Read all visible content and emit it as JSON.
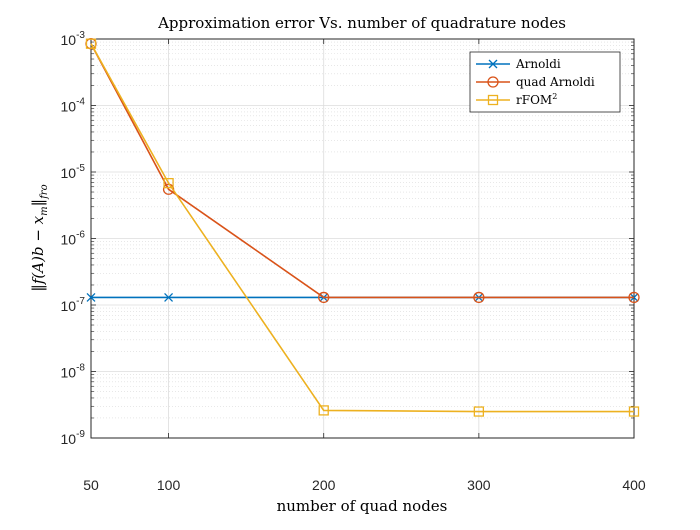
{
  "chart_data": {
    "type": "line",
    "title": "Approximation error Vs. number of quadrature nodes",
    "xlabel": "number of quad nodes",
    "ylabel": "‖f(A)b − x_m‖_fro",
    "ylabel_parts": {
      "lhs": "‖f(A)b − x",
      "sub_m": "m",
      "bar": "‖",
      "sub_fro": "fro"
    },
    "xlim": [
      50,
      400
    ],
    "ylim": [
      1e-09,
      0.001
    ],
    "yscale": "log",
    "grid": true,
    "legend_position": "top-right",
    "x": [
      50,
      100,
      200,
      300,
      400
    ],
    "x_tick_labels": [
      "50",
      "100",
      "200",
      "300",
      "400"
    ],
    "y_tick_labels": [
      {
        "value": 1e-09,
        "base": "10",
        "exp": "-9"
      },
      {
        "value": 1e-08,
        "base": "10",
        "exp": "-8"
      },
      {
        "value": 1e-07,
        "base": "10",
        "exp": "-7"
      },
      {
        "value": 1e-06,
        "base": "10",
        "exp": "-6"
      },
      {
        "value": 1e-05,
        "base": "10",
        "exp": "-5"
      },
      {
        "value": 0.0001,
        "base": "10",
        "exp": "-4"
      },
      {
        "value": 0.001,
        "base": "10",
        "exp": "-3"
      }
    ],
    "series": [
      {
        "name": "Arnoldi",
        "name_sup": "",
        "color": "#0072BD",
        "marker": "x",
        "values": [
          1.3e-07,
          1.3e-07,
          1.3e-07,
          1.3e-07,
          1.3e-07
        ]
      },
      {
        "name": "quad Arnoldi",
        "name_sup": "",
        "color": "#D95319",
        "marker": "o",
        "values": [
          0.00085,
          5.5e-06,
          1.3e-07,
          1.3e-07,
          1.3e-07
        ]
      },
      {
        "name": "rFOM",
        "name_sup": "2",
        "color": "#EDB120",
        "marker": "s",
        "values": [
          0.00085,
          6.8e-06,
          2.6e-09,
          2.5e-09,
          2.5e-09
        ]
      }
    ]
  }
}
